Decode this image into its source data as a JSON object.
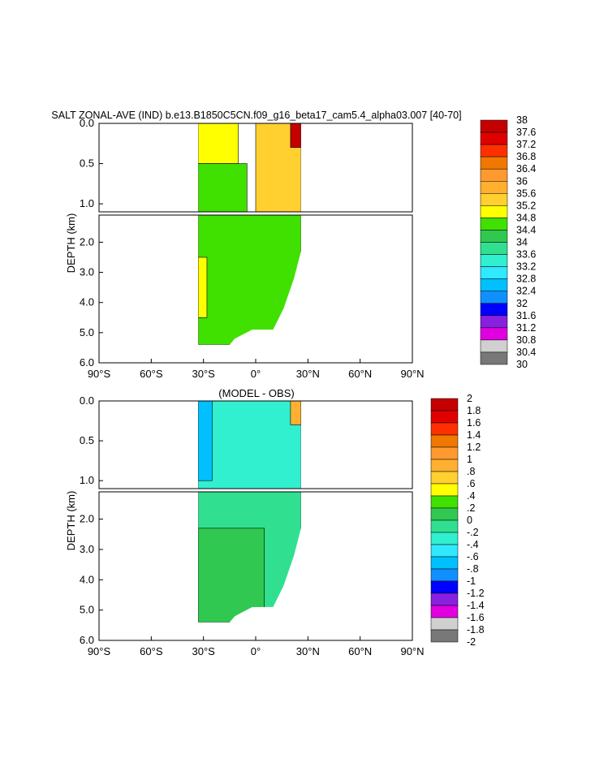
{
  "chart_data": [
    {
      "type": "heatmap",
      "title": "SALT ZONAL-AVE (IND) b.e13.B1850C5CN.f09_g16_beta17_cam5.4_alpha03.007 [40-70]",
      "ylabel": "DEPTH (km)",
      "xlabel": "",
      "x_ticks": [
        "90°S",
        "60°S",
        "30°S",
        "0°",
        "30°N",
        "60°N",
        "90°N"
      ],
      "upper_y_ticks": [
        "0.0",
        "0.5",
        "1.0"
      ],
      "lower_y_ticks": [
        "2.0",
        "3.0",
        "4.0",
        "5.0",
        "6.0"
      ],
      "xlim": [
        -90,
        90
      ],
      "ylim_upper": [
        0,
        1.1
      ],
      "ylim_lower": [
        1.1,
        6.0
      ],
      "colorbar_labels": [
        "38",
        "37.6",
        "37.2",
        "36.8",
        "36.4",
        "36",
        "35.6",
        "35.2",
        "34.8",
        "34.4",
        "34",
        "33.6",
        "33.2",
        "32.8",
        "32.4",
        "32",
        "31.6",
        "31.2",
        "30.8",
        "30.4",
        "30"
      ],
      "colors": [
        "#c40000",
        "#e00000",
        "#ff3000",
        "#f07800",
        "#ff9a30",
        "#ffb030",
        "#ffd030",
        "#ffff00",
        "#40e000",
        "#30c850",
        "#30e090",
        "#30f0d0",
        "#30e8ff",
        "#00c0ff",
        "#1090ff",
        "#0000ff",
        "#8820e0",
        "#e000e0",
        "#d0d0d0",
        "#787878"
      ],
      "ocean_extent": {
        "lat_south": -33,
        "lat_north": 26,
        "max_depth": 5.4
      },
      "regions": [
        {
          "lat": [
            -33,
            -10
          ],
          "depth": [
            0,
            0.5
          ],
          "value": 35.0
        },
        {
          "lat": [
            -33,
            -5
          ],
          "depth": [
            0.5,
            1.1
          ],
          "value": 34.6
        },
        {
          "lat": [
            0,
            26
          ],
          "depth": [
            0,
            1.1
          ],
          "value": 35.2
        },
        {
          "lat": [
            20,
            26
          ],
          "depth": [
            0,
            0.3
          ],
          "value": 37.8
        },
        {
          "lat": [
            -33,
            26
          ],
          "depth": [
            1.1,
            5.4
          ],
          "value": 34.7
        },
        {
          "lat": [
            -33,
            -28
          ],
          "depth": [
            2.5,
            4.5
          ],
          "value": 35.0
        }
      ]
    },
    {
      "type": "heatmap",
      "title": "(MODEL - OBS)",
      "ylabel": "DEPTH (km)",
      "xlabel": "",
      "x_ticks": [
        "90°S",
        "60°S",
        "30°S",
        "0°",
        "30°N",
        "60°N",
        "90°N"
      ],
      "upper_y_ticks": [
        "0.0",
        "0.5",
        "1.0"
      ],
      "lower_y_ticks": [
        "2.0",
        "3.0",
        "4.0",
        "5.0",
        "6.0"
      ],
      "xlim": [
        -90,
        90
      ],
      "ylim_upper": [
        0,
        1.1
      ],
      "ylim_lower": [
        1.1,
        6.0
      ],
      "colorbar_labels": [
        "2",
        "1.8",
        "1.6",
        "1.4",
        "1.2",
        "1",
        ".8",
        ".6",
        ".4",
        ".2",
        "0",
        "-.2",
        "-.4",
        "-.6",
        "-.8",
        "-1",
        "-1.2",
        "-1.4",
        "-1.6",
        "-1.8",
        "-2"
      ],
      "colors": [
        "#c40000",
        "#e00000",
        "#ff3000",
        "#f07800",
        "#ff9a30",
        "#ffb030",
        "#ffd030",
        "#ffff00",
        "#40e000",
        "#30c850",
        "#30e090",
        "#30f0d0",
        "#30e8ff",
        "#00c0ff",
        "#1090ff",
        "#0000ff",
        "#8820e0",
        "#e000e0",
        "#d0d0d0",
        "#787878"
      ],
      "ocean_extent": {
        "lat_south": -33,
        "lat_north": 26,
        "max_depth": 5.4
      },
      "regions": [
        {
          "lat": [
            -33,
            26
          ],
          "depth": [
            0,
            1.1
          ],
          "value": -0.3
        },
        {
          "lat": [
            -33,
            -25
          ],
          "depth": [
            0,
            1.0
          ],
          "value": -0.7
        },
        {
          "lat": [
            -33,
            26
          ],
          "depth": [
            1.1,
            5.4
          ],
          "value": -0.1
        },
        {
          "lat": [
            -33,
            5
          ],
          "depth": [
            2.3,
            5.4
          ],
          "value": 0.1
        },
        {
          "lat": [
            20,
            26
          ],
          "depth": [
            0,
            0.3
          ],
          "value": 1.0
        }
      ]
    }
  ]
}
